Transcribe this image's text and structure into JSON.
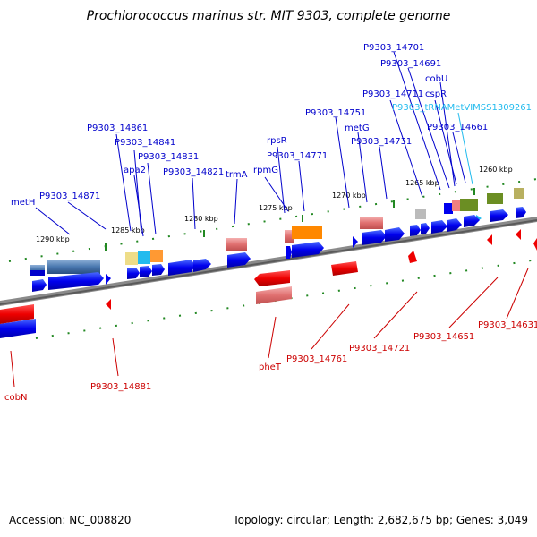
{
  "title": "Prochlorococcus marinus str. MIT 9303, complete genome",
  "footer": {
    "accession": "Accession: NC_008820",
    "summary": "Topology: circular; Length: 2,682,675 bp; Genes: 3,049"
  },
  "scale_ticks": [
    "1290 kbp",
    "1285 kbp",
    "1280 kbp",
    "1275 kbp",
    "1270 kbp",
    "1265 kbp",
    "1260 kbp"
  ],
  "gene_labels_top": [
    "metH",
    "P9303_14871",
    "P9303_14861",
    "P9303_14841",
    "apa2",
    "P9303_14831",
    "P9303_14821",
    "trmA",
    "rpsR",
    "rpmG",
    "P9303_14771",
    "P9303_14751",
    "metG",
    "P9303_14731",
    "P9303_14711",
    "P9303_14701",
    "P9303_14691",
    "cobU",
    "cspR",
    "P9303_tRNAMetVIMSS1309261",
    "P9303_14661"
  ],
  "gene_labels_bottom": [
    "cobN",
    "P9303_14881",
    "pheT",
    "P9303_14761",
    "P9303_14721",
    "P9303_14651",
    "P9303_14631"
  ],
  "colors": {
    "forward": "#0000ee",
    "reverse": "#ee0000",
    "trna": "#00aadd",
    "axis": "#888888",
    "tick": "#228822"
  }
}
